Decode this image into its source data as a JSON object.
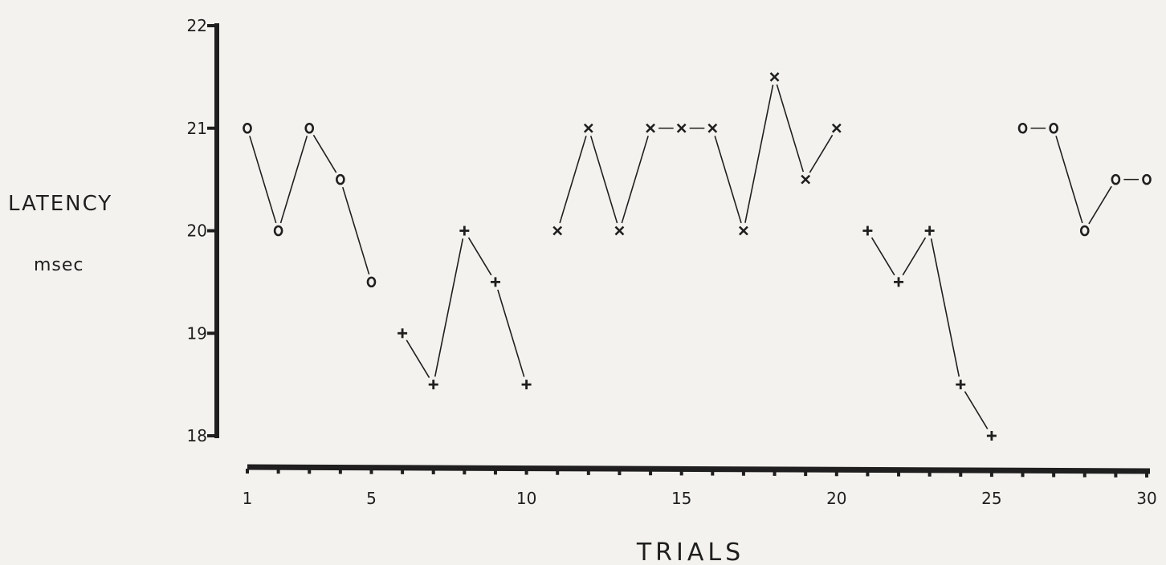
{
  "chart_data": {
    "type": "line",
    "title": "",
    "xlabel": "TRIALS",
    "ylabel": "LATENCY",
    "ylabel_unit": "msec",
    "xlim": [
      1,
      30
    ],
    "ylim": [
      18,
      22
    ],
    "x_ticks": [
      "1",
      "5",
      "10",
      "15",
      "20",
      "25",
      "30"
    ],
    "y_ticks": [
      "18",
      "19",
      "20",
      "21",
      "22"
    ],
    "grid": false,
    "legend": "none",
    "series": [
      {
        "marker": "o",
        "x": [
          1,
          2,
          3,
          4,
          5
        ],
        "y": [
          21,
          20,
          21,
          20.5,
          19.5
        ]
      },
      {
        "marker": "+",
        "x": [
          6,
          7,
          8,
          9,
          10
        ],
        "y": [
          19,
          18.5,
          20,
          19.5,
          18.5
        ]
      },
      {
        "marker": "x",
        "x": [
          11,
          12,
          13,
          14,
          15,
          16,
          17,
          18,
          19,
          20
        ],
        "y": [
          20,
          21,
          20,
          21,
          21,
          21,
          20,
          21.5,
          20.5,
          21
        ]
      },
      {
        "marker": "+",
        "x": [
          21,
          22,
          23,
          24,
          25
        ],
        "y": [
          20,
          19.5,
          20,
          18.5,
          18
        ]
      },
      {
        "marker": "o",
        "x": [
          26,
          27,
          28,
          29,
          30
        ],
        "y": [
          21,
          21,
          20,
          20.5,
          20.5
        ]
      }
    ]
  }
}
